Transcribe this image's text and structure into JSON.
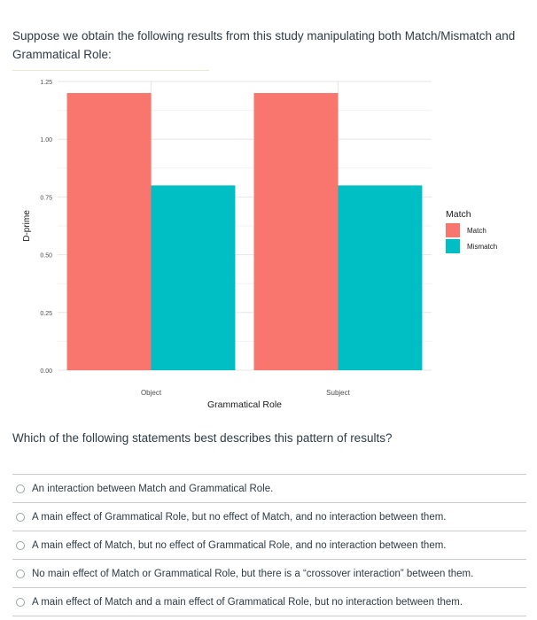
{
  "question": {
    "intro": "Suppose we obtain the following results from this study manipulating both Match/Mismatch and Grammatical Role:",
    "prompt": "Which of the following statements best describes this pattern of results?",
    "answers": [
      "An interaction between Match and Grammatical Role.",
      "A main effect of Grammatical Role, but no effect of Match, and no interaction between them.",
      "A main effect of Match, but no effect of Grammatical Role, and no interaction between them.",
      "No main effect of Match or Grammatical Role, but there is a “crossover interaction” between them.",
      "A main effect of Match and a main effect of Grammatical Role, but no interaction between them."
    ]
  },
  "chart_data": {
    "type": "bar",
    "categories": [
      "Object",
      "Subject"
    ],
    "series": [
      {
        "name": "Match",
        "values": [
          1.2,
          1.2
        ],
        "color": "#f8766d"
      },
      {
        "name": "Mismatch",
        "values": [
          0.8,
          0.8
        ],
        "color": "#00bfc4"
      }
    ],
    "xlabel": "Grammatical Role",
    "ylabel": "D-prime",
    "ylim": [
      0,
      1.25
    ],
    "yticks": [
      "0.00",
      "0.25",
      "0.50",
      "0.75",
      "1.00",
      "1.25"
    ],
    "legend_title": "Match",
    "legend_position": "right",
    "grid": true
  }
}
